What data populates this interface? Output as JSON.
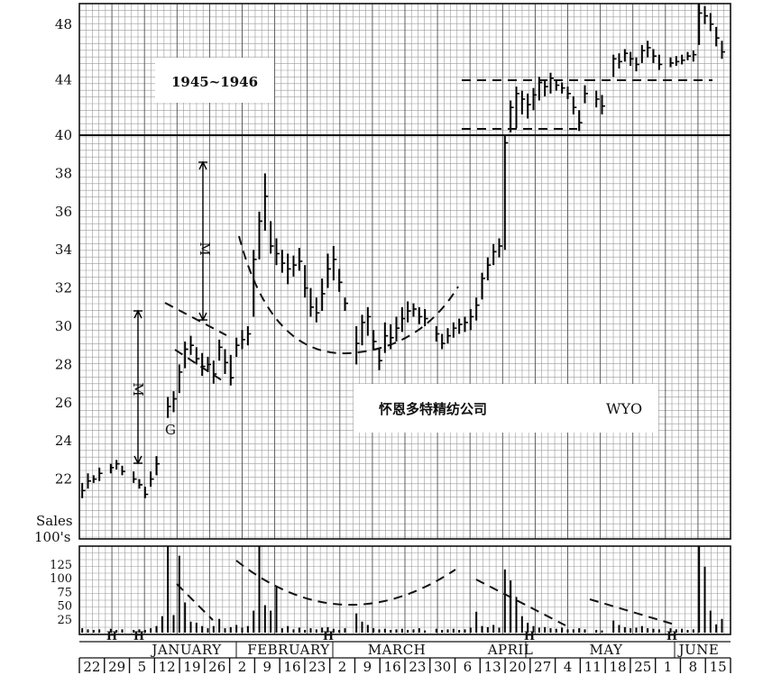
{
  "chart_data": {
    "type": "bar",
    "title": "1945~1946",
    "subtitle": "怀恩多特精纺公司",
    "ticker": "WYO",
    "ylim": [
      21,
      49.5
    ],
    "yticks": [
      22,
      24,
      26,
      28,
      30,
      32,
      34,
      36,
      38,
      40,
      44,
      48
    ],
    "volume_label_line1": "Sales",
    "volume_label_line2": "100's",
    "volume_ticks": [
      25,
      50,
      75,
      100,
      125
    ],
    "months": [
      "JANUARY",
      "FEBRUARY",
      "MARCH",
      "APRIL",
      "MAY",
      "JUNE"
    ],
    "weeks": [
      "22",
      "29",
      "5",
      "12",
      "19",
      "26",
      "2",
      "9",
      "16",
      "23",
      "2",
      "9",
      "16",
      "23",
      "30",
      "6",
      "13",
      "20",
      "27",
      "4",
      "11",
      "18",
      "25",
      "1",
      "8",
      "15"
    ],
    "annotations": {
      "measured_move": "M",
      "gap": "G",
      "holiday": "H"
    },
    "price_bars": [
      [
        0,
        21,
        21.8,
        21.4
      ],
      [
        1,
        21.5,
        22.3,
        21.9
      ],
      [
        2,
        21.8,
        22.2,
        22.0
      ],
      [
        3,
        21.9,
        22.6,
        22.3
      ],
      [
        5,
        22.3,
        22.8,
        22.6
      ],
      [
        6,
        22.5,
        23.0,
        22.8
      ],
      [
        7,
        22.2,
        22.7,
        22.4
      ],
      [
        9,
        21.8,
        22.4,
        22.0
      ],
      [
        10,
        21.5,
        22.0,
        21.7
      ],
      [
        11,
        21.0,
        21.6,
        21.2
      ],
      [
        12,
        21.6,
        22.4,
        22.0
      ],
      [
        13,
        22.2,
        23.2,
        22.8
      ],
      [
        15,
        25.2,
        26.3,
        25.8
      ],
      [
        16,
        25.5,
        26.6,
        26.2
      ],
      [
        17,
        26.5,
        28.0,
        27.6
      ],
      [
        18,
        27.8,
        29.2,
        28.8
      ],
      [
        19,
        28.5,
        29.5,
        29.0
      ],
      [
        20,
        28.0,
        28.9,
        28.3
      ],
      [
        21,
        27.4,
        28.6,
        27.9
      ],
      [
        22,
        27.6,
        28.4,
        28.0
      ],
      [
        23,
        27.0,
        28.2,
        27.5
      ],
      [
        24,
        28.2,
        29.3,
        28.9
      ],
      [
        25,
        27.5,
        28.8,
        28.1
      ],
      [
        26,
        26.9,
        28.5,
        27.3
      ],
      [
        27,
        28.4,
        29.4,
        29.0
      ],
      [
        28,
        28.8,
        29.8,
        29.3
      ],
      [
        29,
        29.0,
        30.0,
        29.6
      ],
      [
        30,
        30.5,
        34.0,
        33.5
      ],
      [
        31,
        33.5,
        36.0,
        35.5
      ],
      [
        32,
        35.0,
        38.0,
        36.8
      ],
      [
        33,
        33.8,
        35.5,
        34.2
      ],
      [
        34,
        33.2,
        34.6,
        33.8
      ],
      [
        35,
        32.8,
        34.0,
        33.3
      ],
      [
        36,
        32.2,
        33.8,
        33.0
      ],
      [
        37,
        32.6,
        33.7,
        33.2
      ],
      [
        38,
        32.9,
        34.1,
        33.4
      ],
      [
        39,
        31.5,
        33.2,
        32.0
      ],
      [
        40,
        30.5,
        32.0,
        31.0
      ],
      [
        41,
        30.2,
        31.5,
        30.7
      ],
      [
        42,
        30.8,
        32.5,
        31.7
      ],
      [
        43,
        32.0,
        33.8,
        33.0
      ],
      [
        44,
        32.4,
        34.2,
        33.5
      ],
      [
        45,
        31.8,
        33.0,
        32.3
      ],
      [
        46,
        30.8,
        31.5,
        31.2
      ],
      [
        48,
        28.0,
        30.0,
        29.1
      ],
      [
        49,
        29.0,
        30.6,
        30.2
      ],
      [
        50,
        29.5,
        31.0,
        30.5
      ],
      [
        51,
        28.8,
        29.8,
        29.2
      ],
      [
        52,
        27.7,
        28.8,
        28.2
      ],
      [
        53,
        28.6,
        30.2,
        29.5
      ],
      [
        54,
        28.8,
        30.1,
        29.4
      ],
      [
        55,
        29.2,
        30.5,
        29.9
      ],
      [
        56,
        29.7,
        31.0,
        30.4
      ],
      [
        57,
        30.2,
        31.3,
        30.8
      ],
      [
        58,
        30.5,
        31.2,
        30.9
      ],
      [
        59,
        30.1,
        31.0,
        30.5
      ],
      [
        60,
        30.0,
        30.9,
        30.4
      ],
      [
        62,
        29.2,
        30.0,
        29.6
      ],
      [
        63,
        28.8,
        29.6,
        29.1
      ],
      [
        64,
        29.1,
        29.9,
        29.5
      ],
      [
        65,
        29.4,
        30.2,
        29.9
      ],
      [
        66,
        29.6,
        30.4,
        30.1
      ],
      [
        67,
        29.7,
        30.5,
        30.2
      ],
      [
        68,
        29.8,
        30.9,
        30.5
      ],
      [
        69,
        30.3,
        31.5,
        31.1
      ],
      [
        70,
        31.4,
        32.8,
        32.5
      ],
      [
        71,
        32.4,
        33.6,
        33.2
      ],
      [
        72,
        33.2,
        34.3,
        33.9
      ],
      [
        73,
        33.6,
        34.6,
        34.2
      ],
      [
        74,
        34.0,
        40.0,
        39.6
      ],
      [
        75,
        40.2,
        42.5,
        42.0
      ],
      [
        76,
        40.5,
        43.5,
        43.0
      ],
      [
        77,
        41.5,
        43.2,
        42.6
      ],
      [
        78,
        41.2,
        43.0,
        42.2
      ],
      [
        79,
        41.8,
        43.4,
        42.9
      ],
      [
        80,
        42.5,
        44.2,
        43.8
      ],
      [
        81,
        42.8,
        43.9,
        43.5
      ],
      [
        82,
        43.0,
        44.5,
        44.1
      ],
      [
        83,
        43.2,
        44.0,
        43.6
      ],
      [
        84,
        43.0,
        43.8,
        43.4
      ],
      [
        85,
        42.6,
        43.5,
        43.0
      ],
      [
        86,
        41.5,
        42.8,
        42.0
      ],
      [
        87,
        40.3,
        41.8,
        40.9
      ],
      [
        88,
        42.3,
        43.6,
        43.0
      ],
      [
        90,
        42.0,
        43.2,
        42.6
      ],
      [
        91,
        41.5,
        42.9,
        42.1
      ],
      [
        93,
        44.2,
        45.8,
        45.5
      ],
      [
        94,
        44.8,
        45.9,
        45.3
      ],
      [
        95,
        45.3,
        46.2,
        45.9
      ],
      [
        96,
        45.0,
        46.0,
        45.5
      ],
      [
        97,
        44.6,
        45.6,
        45.1
      ],
      [
        98,
        45.2,
        46.5,
        46.1
      ],
      [
        99,
        45.6,
        46.8,
        46.3
      ],
      [
        100,
        45.2,
        46.2,
        45.7
      ],
      [
        101,
        44.7,
        45.8,
        45.1
      ],
      [
        103,
        44.9,
        45.6,
        45.2
      ],
      [
        104,
        45.0,
        45.7,
        45.3
      ],
      [
        105,
        45.1,
        45.8,
        45.4
      ],
      [
        106,
        45.4,
        46.0,
        45.7
      ],
      [
        107,
        45.3,
        46.1,
        45.8
      ],
      [
        108,
        46.5,
        49.5,
        48.8
      ],
      [
        109,
        48.0,
        49.3,
        48.6
      ],
      [
        110,
        47.5,
        48.8,
        48.0
      ],
      [
        111,
        46.4,
        47.8,
        47.0
      ],
      [
        112,
        45.5,
        46.8,
        46.0
      ]
    ],
    "volume_bars": [
      [
        0,
        8
      ],
      [
        1,
        6
      ],
      [
        2,
        5
      ],
      [
        3,
        6
      ],
      [
        5,
        7
      ],
      [
        6,
        5
      ],
      [
        7,
        6
      ],
      [
        9,
        5
      ],
      [
        10,
        6
      ],
      [
        11,
        5
      ],
      [
        12,
        8
      ],
      [
        13,
        12
      ],
      [
        14,
        30
      ],
      [
        15,
        180
      ],
      [
        16,
        32
      ],
      [
        17,
        140
      ],
      [
        18,
        55
      ],
      [
        19,
        20
      ],
      [
        20,
        18
      ],
      [
        21,
        12
      ],
      [
        22,
        8
      ],
      [
        23,
        12
      ],
      [
        24,
        25
      ],
      [
        25,
        8
      ],
      [
        26,
        10
      ],
      [
        27,
        14
      ],
      [
        28,
        9
      ],
      [
        29,
        12
      ],
      [
        30,
        40
      ],
      [
        31,
        170
      ],
      [
        32,
        50
      ],
      [
        33,
        40
      ],
      [
        34,
        85
      ],
      [
        35,
        8
      ],
      [
        36,
        12
      ],
      [
        37,
        6
      ],
      [
        38,
        9
      ],
      [
        39,
        5
      ],
      [
        40,
        8
      ],
      [
        41,
        6
      ],
      [
        42,
        9
      ],
      [
        43,
        10
      ],
      [
        44,
        7
      ],
      [
        45,
        5
      ],
      [
        46,
        8
      ],
      [
        48,
        35
      ],
      [
        49,
        20
      ],
      [
        50,
        14
      ],
      [
        51,
        8
      ],
      [
        52,
        6
      ],
      [
        53,
        7
      ],
      [
        54,
        5
      ],
      [
        55,
        6
      ],
      [
        56,
        7
      ],
      [
        57,
        5
      ],
      [
        58,
        6
      ],
      [
        59,
        8
      ],
      [
        60,
        4
      ],
      [
        62,
        7
      ],
      [
        63,
        5
      ],
      [
        64,
        6
      ],
      [
        65,
        7
      ],
      [
        66,
        5
      ],
      [
        67,
        6
      ],
      [
        68,
        9
      ],
      [
        69,
        38
      ],
      [
        70,
        12
      ],
      [
        71,
        10
      ],
      [
        72,
        14
      ],
      [
        73,
        9
      ],
      [
        74,
        115
      ],
      [
        75,
        95
      ],
      [
        76,
        65
      ],
      [
        77,
        30
      ],
      [
        78,
        18
      ],
      [
        79,
        12
      ],
      [
        80,
        9
      ],
      [
        81,
        10
      ],
      [
        82,
        8
      ],
      [
        83,
        7
      ],
      [
        84,
        9
      ],
      [
        85,
        6
      ],
      [
        86,
        6
      ],
      [
        87,
        8
      ],
      [
        88,
        6
      ],
      [
        90,
        5
      ],
      [
        91,
        4
      ],
      [
        93,
        22
      ],
      [
        94,
        14
      ],
      [
        95,
        10
      ],
      [
        96,
        8
      ],
      [
        97,
        9
      ],
      [
        98,
        12
      ],
      [
        99,
        8
      ],
      [
        100,
        7
      ],
      [
        101,
        6
      ],
      [
        103,
        8
      ],
      [
        104,
        6
      ],
      [
        105,
        7
      ],
      [
        106,
        5
      ],
      [
        107,
        6
      ],
      [
        108,
        200
      ],
      [
        109,
        120
      ],
      [
        110,
        40
      ],
      [
        111,
        15
      ],
      [
        112,
        25
      ]
    ]
  }
}
